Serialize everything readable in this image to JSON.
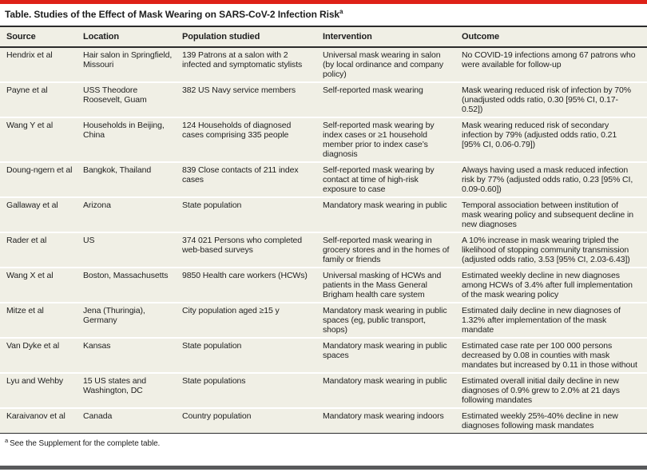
{
  "title": {
    "text": "Table. Studies of the Effect of Mask Wearing on SARS-CoV-2 Infection Risk",
    "superscript": "a"
  },
  "columns": {
    "source": "Source",
    "location": "Location",
    "population": "Population studied",
    "intervention": "Intervention",
    "outcome": "Outcome"
  },
  "rows": [
    {
      "source": "Hendrix et al",
      "location": "Hair salon in Springfield, Missouri",
      "population": "139 Patrons at a salon with 2 infected and symptomatic stylists",
      "intervention": "Universal mask wearing in salon (by local ordinance and company policy)",
      "outcome": "No COVID-19 infections among 67 patrons who were available for follow-up"
    },
    {
      "source": "Payne et al",
      "location": "USS Theodore Roosevelt, Guam",
      "population": "382 US Navy service members",
      "intervention": "Self-reported mask wearing",
      "outcome": "Mask wearing reduced risk of infection by 70% (unadjusted odds ratio, 0.30 [95% CI, 0.17-0.52])"
    },
    {
      "source": "Wang Y et al",
      "location": "Households in Beijing, China",
      "population": "124 Households of diagnosed cases comprising 335 people",
      "intervention": "Self-reported mask wearing by index cases or ≥1 household member prior to index case’s diagnosis",
      "outcome": "Mask wearing reduced risk of secondary infection by 79% (adjusted odds ratio, 0.21 [95% CI, 0.06-0.79])"
    },
    {
      "source": "Doung-ngern et al",
      "location": "Bangkok, Thailand",
      "population": "839 Close contacts of 211 index cases",
      "intervention": "Self-reported mask wearing by contact at time of high-risk exposure to case",
      "outcome": "Always having used a mask reduced infection risk by 77% (adjusted odds ratio, 0.23 [95% CI, 0.09-0.60])"
    },
    {
      "source": "Gallaway et al",
      "location": "Arizona",
      "population": "State population",
      "intervention": "Mandatory mask wearing in public",
      "outcome": "Temporal association between institution of mask wearing policy and subsequent decline in new diagnoses"
    },
    {
      "source": "Rader et al",
      "location": "US",
      "population": "374 021 Persons who completed web-based surveys",
      "intervention": "Self-reported mask wearing in grocery stores and in the homes of family or friends",
      "outcome": "A 10% increase in mask wearing tripled the likelihood of stopping community transmission (adjusted odds ratio, 3.53 [95% CI, 2.03-6.43])"
    },
    {
      "source": "Wang X et al",
      "location": "Boston, Massachusetts",
      "population": "9850 Health care workers (HCWs)",
      "intervention": "Universal masking of HCWs and patients in the Mass General Brigham health care system",
      "outcome": "Estimated weekly decline in new diagnoses among HCWs of 3.4% after full implementation of the mask wearing policy"
    },
    {
      "source": "Mitze et al",
      "location": "Jena (Thuringia), Germany",
      "population": "City population aged ≥15 y",
      "intervention": "Mandatory mask wearing in public spaces (eg, public transport, shops)",
      "outcome": "Estimated daily decline in new diagnoses of 1.32% after implementation of the mask mandate"
    },
    {
      "source": "Van Dyke et al",
      "location": "Kansas",
      "population": "State population",
      "intervention": "Mandatory mask wearing in public spaces",
      "outcome": "Estimated case rate per 100 000 persons decreased by 0.08 in counties with mask mandates but increased by 0.11 in those without"
    },
    {
      "source": "Lyu and Wehby",
      "location": "15 US states and Washington, DC",
      "population": "State populations",
      "intervention": "Mandatory mask wearing in public",
      "outcome": "Estimated overall initial daily decline in new diagnoses of 0.9% grew to 2.0% at 21 days following mandates"
    },
    {
      "source": "Karaivanov et al",
      "location": "Canada",
      "population": "Country population",
      "intervention": "Mandatory mask wearing indoors",
      "outcome": "Estimated weekly 25%-40% decline in new diagnoses following mask mandates"
    }
  ],
  "footnote": {
    "marker": "a",
    "text": "See the Supplement for the complete table."
  },
  "colors": {
    "accent_red": "#DE2118",
    "row_bg": "#F0EFE5",
    "border_dark": "#2B2B2B",
    "bottom_bar": "#58595B"
  }
}
